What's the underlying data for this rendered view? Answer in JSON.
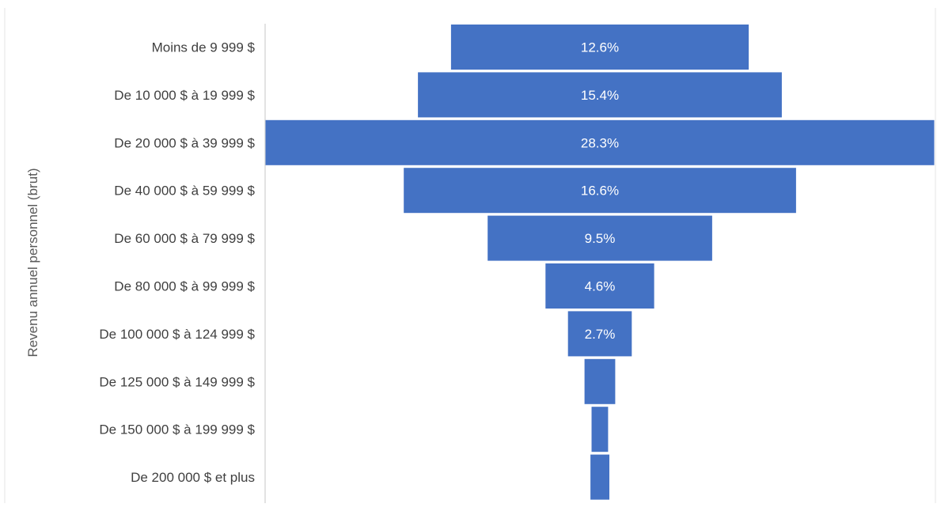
{
  "chart_data": {
    "type": "bar",
    "subtype": "funnel",
    "title": "",
    "ylabel": "Revenu annuel personnel  (brut)",
    "xlabel": "",
    "categories": [
      "Moins de 9 999 $",
      "De 10 000 $ à 19 999 $",
      "De 20 000 $ à 39 999 $",
      "De 40 000 $ à 59 999 $",
      "De 60 000 $ à 79 999 $",
      "De 80 000 $ à 99 999 $",
      "De 100 000 $ à 124 999 $",
      "De 125 000 $ à 149 999 $",
      "De 150 000 $ à 199 999 $",
      "De 200 000 $ et plus"
    ],
    "values": [
      12.6,
      15.4,
      28.3,
      16.6,
      9.5,
      4.6,
      2.7,
      1.3,
      0.7,
      0.8
    ],
    "data_labels": [
      "12.6%",
      "15.4%",
      "28.3%",
      "16.6%",
      "9.5%",
      "4.6%",
      "2.7%",
      "",
      "",
      ""
    ],
    "unit": "%",
    "bar_color": "#4472C4",
    "label_color": "#FFFFFF",
    "tick_label_color": "#404040",
    "axis_line_color": "#D9D9D9",
    "grid": false,
    "legend": "none"
  }
}
